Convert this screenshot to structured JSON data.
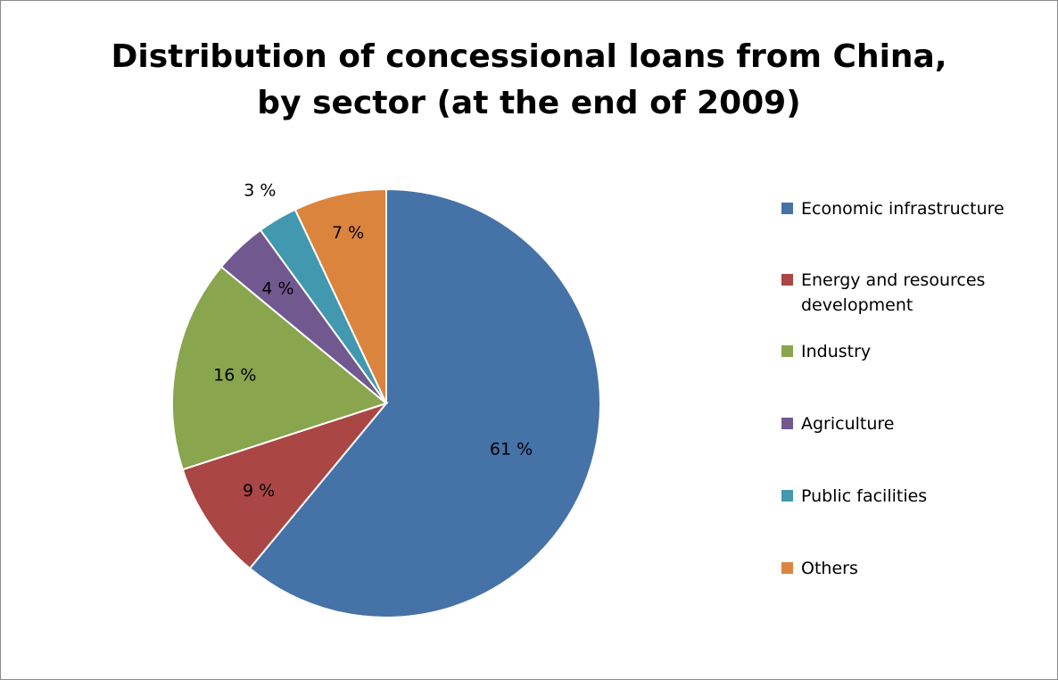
{
  "chart_data": {
    "type": "pie",
    "title": "Distribution of concessional loans from China, by sector (at the end of 2009)",
    "title_lines": [
      "Distribution of concessional loans from China,",
      "by sector (at the end of 2009)"
    ],
    "legend_position": "right",
    "series": [
      {
        "slices": [
          {
            "label": "Economic infrastructure",
            "value": 61,
            "display": "61 %",
            "color": "#4572A7"
          },
          {
            "label": "Energy and resources development",
            "value": 9,
            "display": "9 %",
            "color": "#AA4643"
          },
          {
            "label": "Industry",
            "value": 16,
            "display": "16 %",
            "color": "#89A54E"
          },
          {
            "label": "Agriculture",
            "value": 4,
            "display": "4 %",
            "color": "#71588F"
          },
          {
            "label": "Public facilities",
            "value": 3,
            "display": "3 %",
            "color": "#4198AF"
          },
          {
            "label": "Others",
            "value": 7,
            "display": "7 %",
            "color": "#DB843D"
          }
        ]
      }
    ]
  },
  "legend": {
    "items": [
      {
        "label": "Economic infrastructure",
        "color": "#4572A7"
      },
      {
        "label": "Energy and resources development",
        "color": "#AA4643"
      },
      {
        "label": "Industry",
        "color": "#89A54E"
      },
      {
        "label": "Agriculture",
        "color": "#71588F"
      },
      {
        "label": "Public facilities",
        "color": "#4198AF"
      },
      {
        "label": "Others",
        "color": "#DB843D"
      }
    ]
  }
}
